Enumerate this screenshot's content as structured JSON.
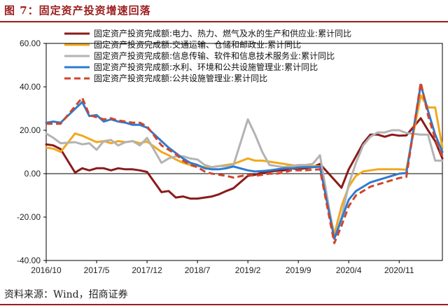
{
  "title": "图 7：固定资产投资增速回落",
  "source": "资料来源：Wind，招商证券",
  "chart_data": {
    "type": "line",
    "title": "图 7：固定资产投资增速回落",
    "xlabel": "",
    "ylabel": "",
    "ylim": [
      -40,
      60
    ],
    "yticks": [
      -40,
      -20,
      0,
      20,
      40,
      60
    ],
    "ytick_labels": [
      "-40.00",
      "-20.00",
      "0.00",
      "20.00",
      "40.00",
      "60.00"
    ],
    "x_tick_labels": [
      "2016/10",
      "2017/5",
      "2017/12",
      "2018/7",
      "2019/2",
      "2019/9",
      "2020/4",
      "2020/11"
    ],
    "x_tick_dates": [
      "2016-10",
      "2017-05",
      "2017-12",
      "2018-07",
      "2019-02",
      "2019-09",
      "2020-04",
      "2020-11"
    ],
    "x_range": [
      "2016-10",
      "2021-05"
    ],
    "grid": false,
    "legend_position": "top",
    "series": [
      {
        "name": "固定资产投资完成额:电力、热力、燃气及水的生产和供应业:累计同比",
        "color": "#8b1a1a",
        "dash": false,
        "points": [
          [
            "2016-10",
            13.5
          ],
          [
            "2016-11",
            13
          ],
          [
            "2016-12",
            11.3
          ],
          [
            "2017-02",
            0.5
          ],
          [
            "2017-03",
            2.5
          ],
          [
            "2017-04",
            1.5
          ],
          [
            "2017-05",
            2.5
          ],
          [
            "2017-06",
            2.5
          ],
          [
            "2017-07",
            1.5
          ],
          [
            "2017-08",
            2.5
          ],
          [
            "2017-09",
            2
          ],
          [
            "2017-10",
            2
          ],
          [
            "2017-11",
            1.5
          ],
          [
            "2017-12",
            0.8
          ],
          [
            "2018-02",
            -8.5
          ],
          [
            "2018-03",
            -8
          ],
          [
            "2018-04",
            -11
          ],
          [
            "2018-05",
            -10.5
          ],
          [
            "2018-06",
            -11.5
          ],
          [
            "2018-07",
            -11.5
          ],
          [
            "2018-08",
            -11
          ],
          [
            "2018-09",
            -10.5
          ],
          [
            "2018-10",
            -9.5
          ],
          [
            "2018-11",
            -8
          ],
          [
            "2018-12",
            -6.7
          ],
          [
            "2019-02",
            -1
          ],
          [
            "2019-03",
            -0.5
          ],
          [
            "2019-04",
            0.5
          ],
          [
            "2019-05",
            1
          ],
          [
            "2019-06",
            1.3
          ],
          [
            "2019-07",
            1.5
          ],
          [
            "2019-08",
            2.5
          ],
          [
            "2019-09",
            2
          ],
          [
            "2019-10",
            2.5
          ],
          [
            "2019-11",
            3
          ],
          [
            "2019-12",
            4.5
          ],
          [
            "2020-03",
            -6.5
          ],
          [
            "2020-04",
            2
          ],
          [
            "2020-05",
            8
          ],
          [
            "2020-06",
            14
          ],
          [
            "2020-07",
            18
          ],
          [
            "2020-08",
            18
          ],
          [
            "2020-09",
            17
          ],
          [
            "2020-10",
            18
          ],
          [
            "2020-11",
            17.5
          ],
          [
            "2020-12",
            17.6
          ],
          [
            "2021-02",
            25.5
          ],
          [
            "2021-03",
            20
          ],
          [
            "2021-04",
            15
          ],
          [
            "2021-05",
            7
          ]
        ]
      },
      {
        "name": "固定资产投资完成额:交通运输、仓储和邮政业:累计同比",
        "color": "#f2a81d",
        "dash": false,
        "points": [
          [
            "2016-10",
            12
          ],
          [
            "2016-11",
            11.5
          ],
          [
            "2016-12",
            10
          ],
          [
            "2017-02",
            18.5
          ],
          [
            "2017-03",
            17.5
          ],
          [
            "2017-04",
            16
          ],
          [
            "2017-05",
            14.5
          ],
          [
            "2017-06",
            15
          ],
          [
            "2017-07",
            14
          ],
          [
            "2017-08",
            15
          ],
          [
            "2017-09",
            14.5
          ],
          [
            "2017-10",
            15
          ],
          [
            "2017-11",
            14
          ],
          [
            "2017-12",
            14.8
          ],
          [
            "2018-02",
            10
          ],
          [
            "2018-03",
            8.5
          ],
          [
            "2018-04",
            6.5
          ],
          [
            "2018-05",
            5
          ],
          [
            "2018-06",
            4
          ],
          [
            "2018-07",
            3.5
          ],
          [
            "2018-08",
            3
          ],
          [
            "2018-09",
            3
          ],
          [
            "2018-10",
            3.5
          ],
          [
            "2018-11",
            4
          ],
          [
            "2018-12",
            4.5
          ],
          [
            "2019-02",
            7
          ],
          [
            "2019-03",
            6
          ],
          [
            "2019-04",
            6
          ],
          [
            "2019-05",
            5.5
          ],
          [
            "2019-06",
            5
          ],
          [
            "2019-07",
            4.5
          ],
          [
            "2019-08",
            4
          ],
          [
            "2019-09",
            3.5
          ],
          [
            "2019-10",
            3.5
          ],
          [
            "2019-11",
            3.5
          ],
          [
            "2019-12",
            3.4
          ],
          [
            "2020-02",
            -28
          ],
          [
            "2020-03",
            -15
          ],
          [
            "2020-04",
            -6
          ],
          [
            "2020-05",
            -1
          ],
          [
            "2020-06",
            1
          ],
          [
            "2020-07",
            1.5
          ],
          [
            "2020-08",
            2
          ],
          [
            "2020-09",
            2
          ],
          [
            "2020-10",
            2
          ],
          [
            "2020-11",
            2
          ],
          [
            "2020-12",
            1.8
          ],
          [
            "2021-02",
            36
          ],
          [
            "2021-03",
            30.5
          ],
          [
            "2021-04",
            30.5
          ],
          [
            "2021-05",
            12
          ]
        ]
      },
      {
        "name": "固定资产投资完成额:信息传输、软件和信息技术服务业:累计同比",
        "color": "#b3b3b3",
        "dash": false,
        "points": [
          [
            "2016-10",
            18.5
          ],
          [
            "2016-11",
            16.5
          ],
          [
            "2016-12",
            14
          ],
          [
            "2017-02",
            14.5
          ],
          [
            "2017-03",
            13.5
          ],
          [
            "2017-04",
            14
          ],
          [
            "2017-05",
            11
          ],
          [
            "2017-06",
            15
          ],
          [
            "2017-07",
            15.5
          ],
          [
            "2017-08",
            13
          ],
          [
            "2017-09",
            14.5
          ],
          [
            "2017-10",
            15
          ],
          [
            "2017-11",
            13
          ],
          [
            "2017-12",
            16.5
          ],
          [
            "2018-02",
            5
          ],
          [
            "2018-03",
            7
          ],
          [
            "2018-04",
            8
          ],
          [
            "2018-05",
            8
          ],
          [
            "2018-06",
            7
          ],
          [
            "2018-07",
            6.5
          ],
          [
            "2018-08",
            4
          ],
          [
            "2018-09",
            3
          ],
          [
            "2018-10",
            3.5
          ],
          [
            "2018-11",
            3.5
          ],
          [
            "2018-12",
            4
          ],
          [
            "2019-02",
            25
          ],
          [
            "2019-03",
            18
          ],
          [
            "2019-04",
            10
          ],
          [
            "2019-05",
            4
          ],
          [
            "2019-06",
            3.5
          ],
          [
            "2019-07",
            3
          ],
          [
            "2019-08",
            3.5
          ],
          [
            "2019-09",
            4
          ],
          [
            "2019-10",
            4
          ],
          [
            "2019-11",
            4.5
          ],
          [
            "2019-12",
            8.5
          ],
          [
            "2020-02",
            -30
          ],
          [
            "2020-03",
            -20
          ],
          [
            "2020-04",
            -5
          ],
          [
            "2020-05",
            5
          ],
          [
            "2020-06",
            13
          ],
          [
            "2020-07",
            17
          ],
          [
            "2020-08",
            19
          ],
          [
            "2020-09",
            19
          ],
          [
            "2020-10",
            20
          ],
          [
            "2020-11",
            20
          ],
          [
            "2020-12",
            18.7
          ],
          [
            "2021-02",
            18
          ],
          [
            "2021-03",
            18
          ],
          [
            "2021-04",
            6
          ],
          [
            "2021-05",
            6
          ]
        ]
      },
      {
        "name": "固定资产投资完成额:水利、环境和公共设施管理业:累计同比",
        "color": "#2e7bcf",
        "dash": false,
        "points": [
          [
            "2016-10",
            23.5
          ],
          [
            "2016-11",
            24
          ],
          [
            "2016-12",
            23.5
          ],
          [
            "2017-03",
            33
          ],
          [
            "2017-04",
            26.5
          ],
          [
            "2017-05",
            27
          ],
          [
            "2017-06",
            24
          ],
          [
            "2017-07",
            25
          ],
          [
            "2017-08",
            24
          ],
          [
            "2017-09",
            23.5
          ],
          [
            "2017-10",
            22.5
          ],
          [
            "2017-11",
            22.5
          ],
          [
            "2017-12",
            21.2
          ],
          [
            "2018-02",
            15
          ],
          [
            "2018-03",
            12
          ],
          [
            "2018-04",
            9.5
          ],
          [
            "2018-05",
            7
          ],
          [
            "2018-06",
            5
          ],
          [
            "2018-07",
            4
          ],
          [
            "2018-08",
            2.5
          ],
          [
            "2018-09",
            2
          ],
          [
            "2018-10",
            2
          ],
          [
            "2018-11",
            2.5
          ],
          [
            "2018-12",
            3.3
          ],
          [
            "2019-02",
            1.5
          ],
          [
            "2019-03",
            1
          ],
          [
            "2019-04",
            1.2
          ],
          [
            "2019-05",
            1.5
          ],
          [
            "2019-06",
            2
          ],
          [
            "2019-07",
            2.5
          ],
          [
            "2019-08",
            2.5
          ],
          [
            "2019-09",
            2.8
          ],
          [
            "2019-10",
            3
          ],
          [
            "2019-11",
            3
          ],
          [
            "2019-12",
            3.2
          ],
          [
            "2020-02",
            -30
          ],
          [
            "2020-03",
            -21
          ],
          [
            "2020-04",
            -12
          ],
          [
            "2020-05",
            -8
          ],
          [
            "2020-06",
            -6
          ],
          [
            "2020-07",
            -4
          ],
          [
            "2020-08",
            -3
          ],
          [
            "2020-09",
            -2
          ],
          [
            "2020-10",
            -1
          ],
          [
            "2020-11",
            0
          ],
          [
            "2020-12",
            0.3
          ],
          [
            "2021-02",
            41
          ],
          [
            "2021-03",
            29
          ],
          [
            "2021-04",
            18
          ],
          [
            "2021-05",
            10
          ]
        ]
      },
      {
        "name": "固定资产投资完成额:公共设施管理业:累计同比",
        "color": "#d0452a",
        "dash": true,
        "points": [
          [
            "2016-10",
            23
          ],
          [
            "2016-11",
            23
          ],
          [
            "2016-12",
            23
          ],
          [
            "2017-03",
            35
          ],
          [
            "2017-04",
            27
          ],
          [
            "2017-05",
            26
          ],
          [
            "2017-06",
            25
          ],
          [
            "2017-07",
            25.5
          ],
          [
            "2017-08",
            24.5
          ],
          [
            "2017-09",
            24
          ],
          [
            "2017-10",
            23.5
          ],
          [
            "2017-11",
            23.5
          ],
          [
            "2017-12",
            21.8
          ],
          [
            "2018-02",
            13
          ],
          [
            "2018-03",
            11
          ],
          [
            "2018-04",
            9
          ],
          [
            "2018-05",
            6
          ],
          [
            "2018-06",
            4
          ],
          [
            "2018-07",
            3
          ],
          [
            "2018-08",
            1
          ],
          [
            "2018-09",
            0
          ],
          [
            "2018-10",
            -0.5
          ],
          [
            "2018-11",
            -1
          ],
          [
            "2018-12",
            -1.8
          ],
          [
            "2019-02",
            -0.5
          ],
          [
            "2019-03",
            -1
          ],
          [
            "2019-04",
            -0.5
          ],
          [
            "2019-05",
            0
          ],
          [
            "2019-06",
            0
          ],
          [
            "2019-07",
            0.5
          ],
          [
            "2019-08",
            1.5
          ],
          [
            "2019-09",
            1.5
          ],
          [
            "2019-10",
            1.5
          ],
          [
            "2019-11",
            1.8
          ],
          [
            "2019-12",
            2
          ],
          [
            "2020-02",
            -32
          ],
          [
            "2020-03",
            -24
          ],
          [
            "2020-04",
            -15
          ],
          [
            "2020-05",
            -10
          ],
          [
            "2020-06",
            -8
          ],
          [
            "2020-07",
            -6
          ],
          [
            "2020-08",
            -5
          ],
          [
            "2020-09",
            -4
          ],
          [
            "2020-10",
            -3
          ],
          [
            "2020-11",
            -2
          ],
          [
            "2020-12",
            -1.5
          ],
          [
            "2021-02",
            42
          ],
          [
            "2021-03",
            27
          ],
          [
            "2021-04",
            16
          ],
          [
            "2021-05",
            8
          ]
        ]
      }
    ]
  }
}
